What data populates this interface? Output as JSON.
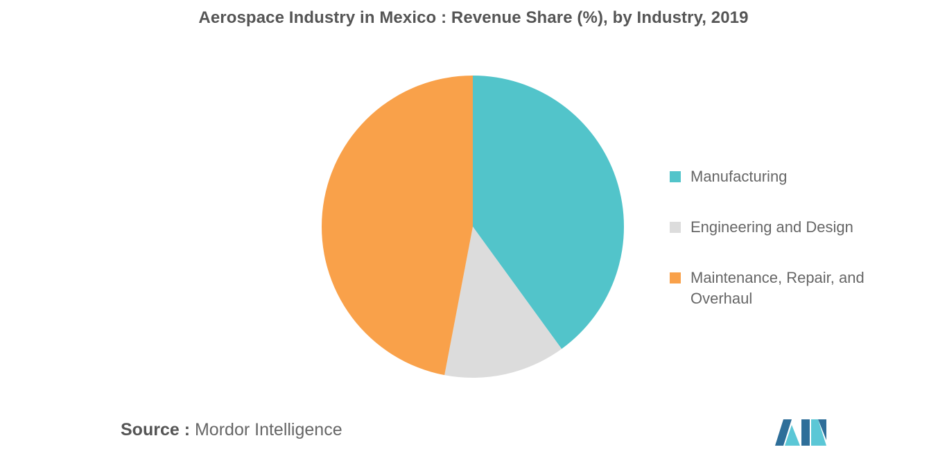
{
  "chart_data": {
    "type": "pie",
    "title": "Aerospace Industry in Mexico : Revenue Share (%), by Industry, 2019",
    "categories": [
      "Manufacturing",
      "Engineering and Design",
      "Maintenance, Repair, and Overhaul"
    ],
    "values": [
      40,
      13,
      47
    ],
    "colors": [
      "#52C4CA",
      "#DCDCDC",
      "#F9A14A"
    ],
    "legend_position": "right"
  },
  "source": {
    "label": "Source :",
    "text": "Mordor Intelligence"
  },
  "logo": {
    "icon": "mordor-intelligence-logo-icon",
    "colors": [
      "#2E6E99",
      "#5BC7D6"
    ]
  }
}
